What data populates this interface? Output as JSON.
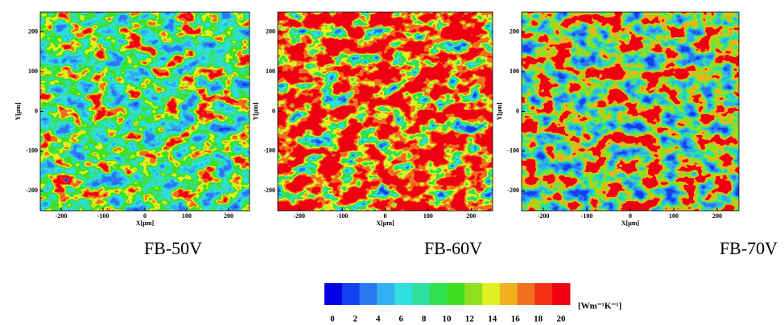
{
  "panels": [
    {
      "caption": "FB-50V",
      "xlabel": "X[μm]",
      "ylabel": "Y[μm]",
      "xlim": [
        -250,
        250
      ],
      "ylim": [
        -250,
        250
      ],
      "xticks": [
        -200,
        -100,
        0,
        100,
        200
      ],
      "yticks": [
        -200,
        -100,
        0,
        100,
        200
      ]
    },
    {
      "caption": "FB-60V",
      "xlabel": "X[μm]",
      "ylabel": "Y[μm]",
      "xlim": [
        -250,
        250
      ],
      "ylim": [
        -250,
        250
      ],
      "xticks": [
        -200,
        -100,
        0,
        100,
        200
      ],
      "yticks": [
        -200,
        -100,
        0,
        100,
        200
      ]
    },
    {
      "caption": "FB-70V",
      "xlabel": "X[μm]",
      "ylabel": "Y[μm]",
      "xlim": [
        -250,
        250
      ],
      "ylim": [
        -250,
        250
      ],
      "xticks": [
        -200,
        -100,
        0,
        100,
        200
      ],
      "yticks": [
        -200,
        -100,
        0,
        100,
        200
      ]
    }
  ],
  "colorbar": {
    "unit": "[Wm⁻¹K⁻¹]",
    "ticks": [
      0,
      2,
      4,
      6,
      8,
      10,
      12,
      14,
      16,
      18,
      20
    ],
    "colors": [
      "#0000e0",
      "#1040f0",
      "#2a78f0",
      "#30b0f0",
      "#30e0e0",
      "#30e0a0",
      "#30e050",
      "#40e020",
      "#90e020",
      "#e0f020",
      "#f0b020",
      "#f07020",
      "#f03010",
      "#f00010"
    ]
  }
}
